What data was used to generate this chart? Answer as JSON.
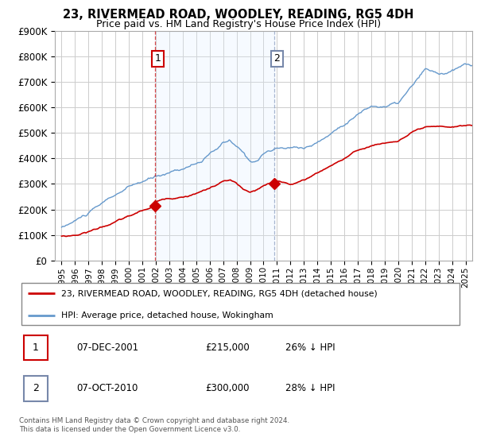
{
  "title": "23, RIVERMEAD ROAD, WOODLEY, READING, RG5 4DH",
  "subtitle": "Price paid vs. HM Land Registry's House Price Index (HPI)",
  "ylabel_ticks": [
    "£0",
    "£100K",
    "£200K",
    "£300K",
    "£400K",
    "£500K",
    "£600K",
    "£700K",
    "£800K",
    "£900K"
  ],
  "ytick_values": [
    0,
    100000,
    200000,
    300000,
    400000,
    500000,
    600000,
    700000,
    800000,
    900000
  ],
  "ylim": [
    0,
    900000
  ],
  "xlim_start": 1994.5,
  "xlim_end": 2025.5,
  "xticks": [
    1995,
    1996,
    1997,
    1998,
    1999,
    2000,
    2001,
    2002,
    2003,
    2004,
    2005,
    2006,
    2007,
    2008,
    2009,
    2010,
    2011,
    2012,
    2013,
    2014,
    2015,
    2016,
    2017,
    2018,
    2019,
    2020,
    2021,
    2022,
    2023,
    2024,
    2025
  ],
  "sale1_x": 2001.92,
  "sale1_y": 215000,
  "sale1_label": "1",
  "sale1_date": "07-DEC-2001",
  "sale1_price": "£215,000",
  "sale1_hpi": "26% ↓ HPI",
  "sale2_x": 2010.77,
  "sale2_y": 300000,
  "sale2_label": "2",
  "sale2_date": "07-OCT-2010",
  "sale2_price": "£300,000",
  "sale2_hpi": "28% ↓ HPI",
  "red_line_color": "#cc0000",
  "blue_line_color": "#6699cc",
  "shade_color": "#ddeeff",
  "background_color": "#ffffff",
  "grid_color": "#cccccc",
  "legend_label_red": "23, RIVERMEAD ROAD, WOODLEY, READING, RG5 4DH (detached house)",
  "legend_label_blue": "HPI: Average price, detached house, Wokingham",
  "footer": "Contains HM Land Registry data © Crown copyright and database right 2024.\nThis data is licensed under the Open Government Licence v3.0."
}
